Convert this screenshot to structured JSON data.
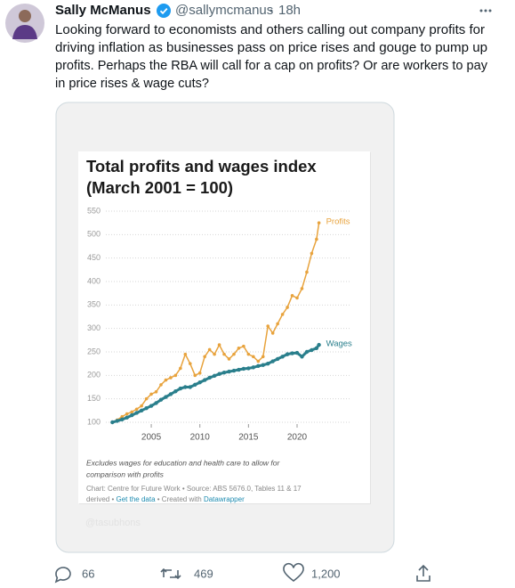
{
  "tweet": {
    "author": {
      "name": "Sally McManus",
      "handle": "@sallymcmanus",
      "time": "18h"
    },
    "text_lines": [
      "Looking forward to economists and others calling out company profits for",
      "driving inflation as businesses pass on price rises and gouge to pump up",
      "profits. Perhaps the RBA will call for a cap on profits? Or are workers to pay",
      "in price rises & wage cuts?"
    ],
    "watermark": "@tasubhons",
    "stats": {
      "replies": "66",
      "retweets": "469",
      "likes": "1,200"
    }
  },
  "chart_data": {
    "type": "line",
    "title": "Total profits and wages index",
    "subtitle": "(March 2001 = 100)",
    "note_lines": [
      "Excludes wages for education and health care to allow for",
      "comparison with profits"
    ],
    "source_line": "Chart: Centre for Future Work • Source: ABS 5676.0, Tables 11 & 17",
    "credits": [
      "derived •",
      "Get the data",
      "• Created with",
      "Datawrapper"
    ],
    "x": [
      2001,
      2001.5,
      2002,
      2002.5,
      2003,
      2003.5,
      2004,
      2004.5,
      2005,
      2005.5,
      2006,
      2006.5,
      2007,
      2007.5,
      2008,
      2008.5,
      2009,
      2009.5,
      2010,
      2010.5,
      2011,
      2011.5,
      2012,
      2012.5,
      2013,
      2013.5,
      2014,
      2014.5,
      2015,
      2015.5,
      2016,
      2016.5,
      2017,
      2017.5,
      2018,
      2018.5,
      2019,
      2019.5,
      2020,
      2020.5,
      2021,
      2021.5,
      2022,
      2022.25
    ],
    "series": [
      {
        "name": "Profits",
        "color": "#e8a33d",
        "values": [
          100,
          105,
          112,
          118,
          122,
          128,
          135,
          150,
          160,
          165,
          180,
          190,
          195,
          200,
          215,
          245,
          225,
          200,
          205,
          240,
          255,
          245,
          265,
          245,
          235,
          245,
          258,
          262,
          245,
          240,
          230,
          240,
          305,
          290,
          310,
          330,
          345,
          370,
          365,
          385,
          420,
          460,
          490,
          525
        ]
      },
      {
        "name": "Wages",
        "color": "#2a7f8c",
        "values": [
          100,
          103,
          106,
          110,
          115,
          120,
          125,
          130,
          135,
          141,
          148,
          154,
          160,
          166,
          172,
          175,
          175,
          180,
          185,
          190,
          195,
          199,
          203,
          206,
          208,
          210,
          212,
          214,
          215,
          217,
          220,
          222,
          225,
          230,
          235,
          240,
          245,
          247,
          248,
          240,
          250,
          254,
          258,
          265
        ]
      }
    ],
    "xlim": [
      2000,
      2023
    ],
    "xticks": [
      2005,
      2010,
      2015,
      2020
    ],
    "ylim": [
      100,
      550
    ],
    "yticks": [
      100,
      150,
      200,
      250,
      300,
      350,
      400,
      450,
      500,
      550
    ],
    "grid": true
  }
}
